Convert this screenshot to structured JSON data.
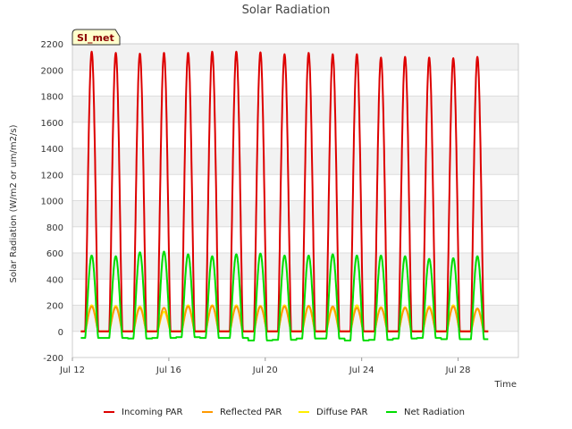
{
  "chart_data": {
    "type": "line",
    "title": "Solar Radiation",
    "xlabel": "Time",
    "ylabel": "Solar Radiation (W/m2 or um/m2/s)",
    "site_label": "SI_met",
    "x_ticks": [
      "Jul 12",
      "Jul 16",
      "Jul 20",
      "Jul 24",
      "Jul 28"
    ],
    "x_tick_days": [
      12,
      16,
      20,
      24,
      28
    ],
    "xlim": [
      12,
      30.5
    ],
    "y_ticks": [
      -200,
      0,
      200,
      400,
      600,
      800,
      1000,
      1200,
      1400,
      1600,
      1800,
      2000,
      2200
    ],
    "ylim": [
      -200,
      2200
    ],
    "grid": true,
    "legend_position": "bottom",
    "day_peaks": [
      12.8,
      13.8,
      14.8,
      15.8,
      16.8,
      17.8,
      18.8,
      19.8,
      20.8,
      21.8,
      22.8,
      23.8,
      24.8,
      25.8,
      26.8,
      27.8,
      28.8
    ],
    "series": [
      {
        "name": "Incoming PAR",
        "color": "#dd0000",
        "baseline": 0,
        "peaks": [
          2140,
          2130,
          2125,
          2130,
          2130,
          2140,
          2140,
          2135,
          2120,
          2130,
          2120,
          2120,
          2095,
          2100,
          2095,
          2090,
          2100
        ]
      },
      {
        "name": "Reflected PAR",
        "color": "#ff9900",
        "baseline": 0,
        "peaks": [
          190,
          185,
          180,
          180,
          190,
          195,
          190,
          190,
          190,
          195,
          190,
          180,
          180,
          180,
          180,
          190,
          175
        ]
      },
      {
        "name": "Diffuse PAR",
        "color": "#ffee00",
        "baseline": 0,
        "peaks": [
          200,
          195,
          190,
          150,
          200,
          200,
          200,
          195,
          200,
          190,
          175,
          200,
          185,
          185,
          190,
          200,
          170
        ]
      },
      {
        "name": "Net Radiation",
        "color": "#00dd00",
        "baseline": -50,
        "night_values": [
          -50,
          -50,
          -55,
          -50,
          -45,
          -50,
          -50,
          -70,
          -65,
          -55,
          -55,
          -70,
          -65,
          -55,
          -50,
          -60,
          -60
        ],
        "peaks": [
          580,
          575,
          605,
          610,
          590,
          575,
          590,
          595,
          580,
          580,
          590,
          580,
          580,
          575,
          555,
          560,
          575
        ]
      }
    ]
  }
}
